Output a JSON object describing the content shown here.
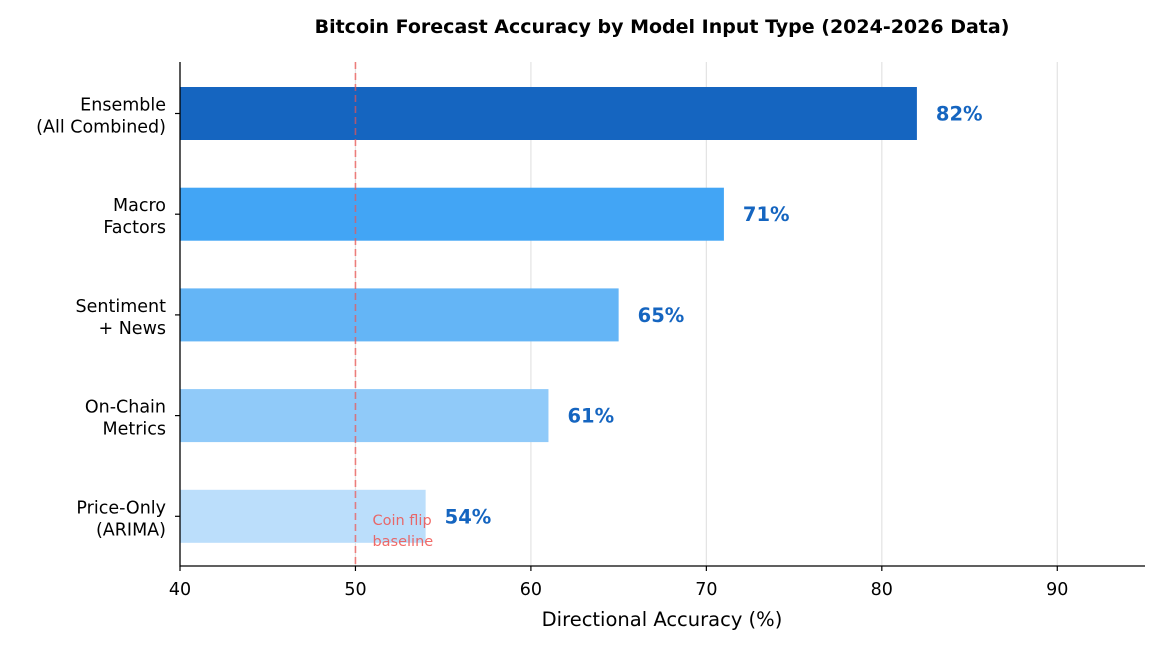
{
  "chart_data": {
    "type": "bar",
    "orientation": "horizontal",
    "title": "Bitcoin Forecast Accuracy by Model Input Type (2024-2026 Data)",
    "xlabel": "Directional Accuracy (%)",
    "ylabel": "",
    "xlim": [
      40,
      95
    ],
    "xticks": [
      40,
      50,
      60,
      70,
      80,
      90
    ],
    "grid": "x",
    "categories": [
      [
        "Ensemble",
        "(All Combined)"
      ],
      [
        "Macro",
        "Factors"
      ],
      [
        "Sentiment",
        "+ News"
      ],
      [
        "On-Chain",
        "Metrics"
      ],
      [
        "Price-Only",
        "(ARIMA)"
      ]
    ],
    "values": [
      82,
      71,
      65,
      61,
      54
    ],
    "value_labels": [
      "82%",
      "71%",
      "65%",
      "61%",
      "54%"
    ],
    "colors": [
      "#1565c0",
      "#42a5f5",
      "#64b5f6",
      "#90caf9",
      "#bbdefb"
    ],
    "label_color": "#1565c0",
    "reference_line": {
      "value": 50,
      "color": "#ef5350",
      "style": "dashed",
      "annotation": [
        "Coin flip",
        "baseline"
      ]
    }
  }
}
